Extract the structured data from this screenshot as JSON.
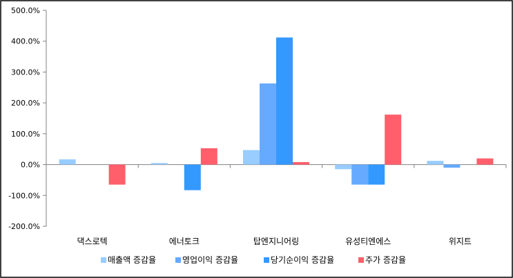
{
  "chart_data": {
    "type": "bar",
    "categories": [
      "댁스로텍",
      "에너토크",
      "탑엔지니어링",
      "유성티엔에스",
      "위지트"
    ],
    "series": [
      {
        "name": "매출액 증감율",
        "color": "#99ccff",
        "values": [
          17,
          5,
          47,
          -15,
          12
        ]
      },
      {
        "name": "영업이익 증감율",
        "color": "#66aaff",
        "values": [
          0,
          0,
          263,
          -65,
          -10
        ]
      },
      {
        "name": "당기순이익 증감율",
        "color": "#3399ff",
        "values": [
          0,
          -83,
          412,
          -65,
          0
        ]
      },
      {
        "name": "주가 증감율",
        "color": "#ff5f6a",
        "values": [
          -65,
          53,
          8,
          162,
          20
        ]
      }
    ],
    "yticks": [
      "500.0%",
      "400.0%",
      "300.0%",
      "200.0%",
      "100.0%",
      "0.0%",
      "-100.0%",
      "-200.0%"
    ],
    "ylim": [
      -200,
      500
    ],
    "grid": false,
    "legend": "bottom",
    "border_color": "#000000"
  }
}
